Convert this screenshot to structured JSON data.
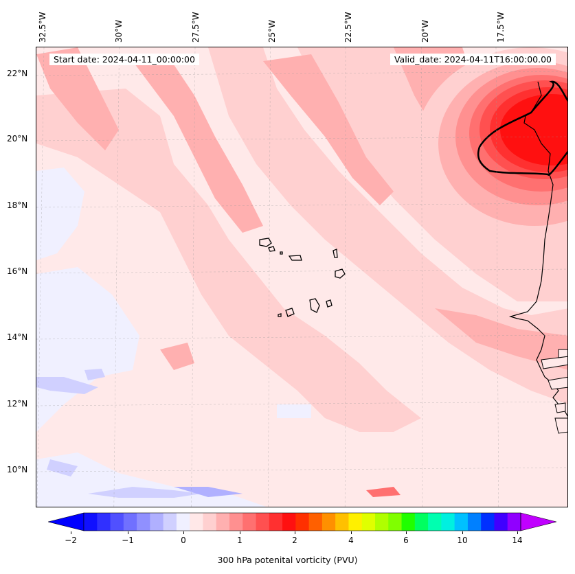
{
  "map": {
    "start_label": "Start date: 2024-04-11_00:00:00",
    "valid_label": "Valid_date: 2024-04-11T16:00:00.00",
    "lon_labels": [
      "32.5°W",
      "30°W",
      "27.5°W",
      "25°W",
      "22.5°W",
      "20°W",
      "17.5°W"
    ],
    "lat_labels": [
      "22°N",
      "20°N",
      "18°N",
      "16°N",
      "14°N",
      "12°N",
      "10°N"
    ],
    "extent": {
      "lon_min": -32.6,
      "lon_max": -15.5,
      "lat_min": 8.9,
      "lat_max": 22.8
    },
    "gridlines": true,
    "background_color": "#ffe9e9"
  },
  "colorbar": {
    "label": "300 hPa potenital vorticity (PVU)",
    "ticks": [
      "−2",
      "−1",
      "0",
      "1",
      "2",
      "4",
      "6",
      "10",
      "14"
    ],
    "extend": "both",
    "colors": [
      "#1010ff",
      "#3030ff",
      "#5050ff",
      "#7070ff",
      "#9090ff",
      "#b0b0ff",
      "#d0d0ff",
      "#f0f0ff",
      "#ffe8e8",
      "#ffd0d0",
      "#ffb0b0",
      "#ff9090",
      "#ff7070",
      "#ff5050",
      "#ff3030",
      "#ff1010",
      "#ff3000",
      "#ff6000",
      "#ff9000",
      "#ffc000",
      "#fff000",
      "#e0ff00",
      "#b0ff00",
      "#80ff00",
      "#20ff00",
      "#00ff60",
      "#00ffb0",
      "#00f0e0",
      "#00c0ff",
      "#0080ff",
      "#0030ff",
      "#4000ff",
      "#9000ff"
    ],
    "under_color": "#0000ff",
    "over_color": "#c000ff"
  }
}
